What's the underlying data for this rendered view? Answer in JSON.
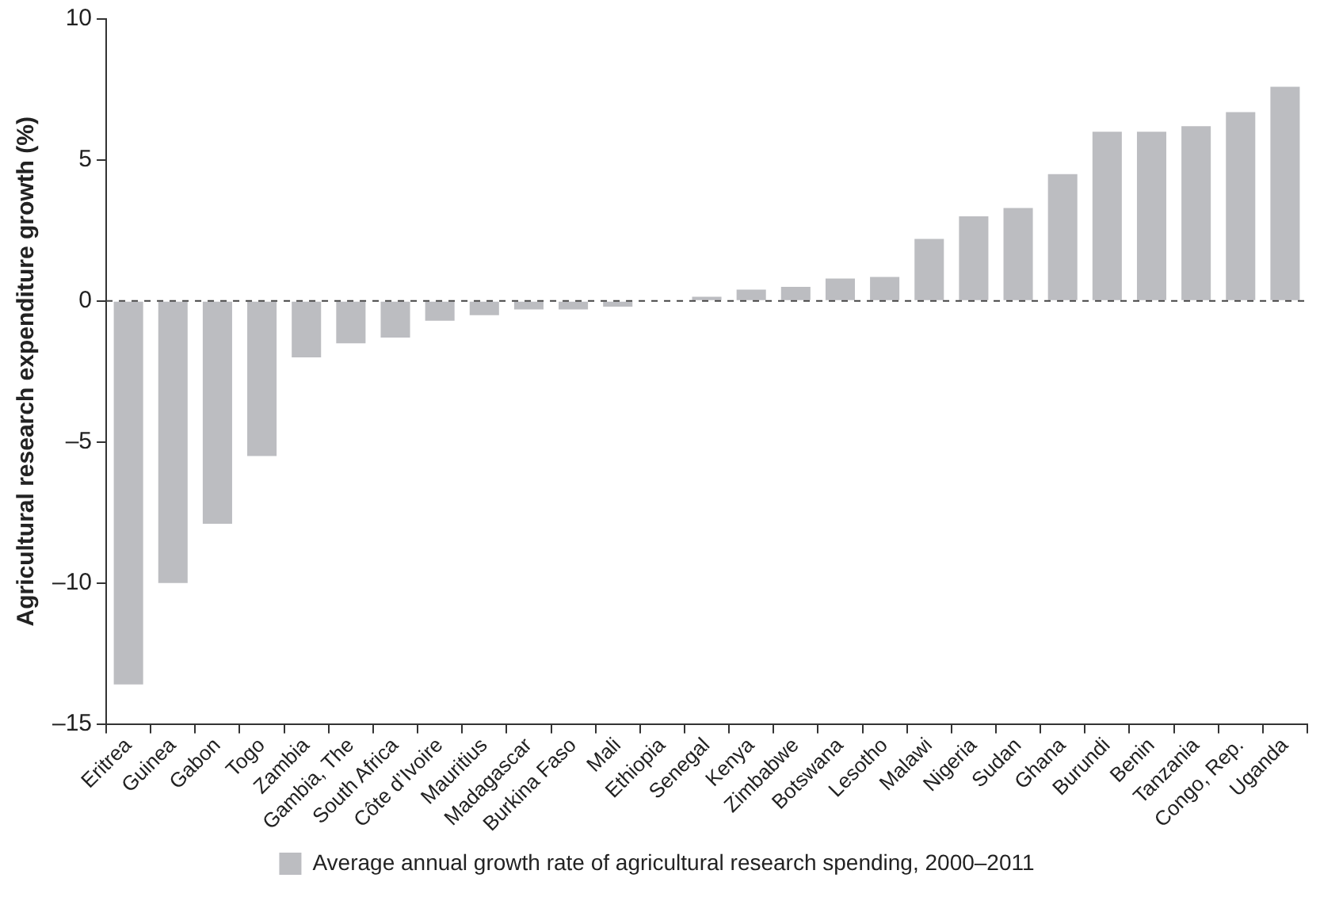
{
  "chart_data": {
    "type": "bar",
    "ylabel": "Agricultural research expenditure growth (%)",
    "categories": [
      "Eritrea",
      "Guinea",
      "Gabon",
      "Togo",
      "Zambia",
      "Gambia, The",
      "South Africa",
      "Côte d’Ivoire",
      "Mauritius",
      "Madagascar",
      "Burkina Faso",
      "Mali",
      "Ethiopia",
      "Senegal",
      "Kenya",
      "Zimbabwe",
      "Botswana",
      "Lesotho",
      "Malawi",
      "Nigeria",
      "Sudan",
      "Ghana",
      "Burundi",
      "Benin",
      "Tanzania",
      "Congo, Rep.",
      "Uganda"
    ],
    "series": [
      {
        "name": "Average annual growth rate of agricultural research spending, 2000–2011",
        "color": "#bcbdc1",
        "values": [
          -13.6,
          -10,
          -7.9,
          -5.5,
          -2,
          -1.5,
          -1.3,
          -0.7,
          -0.5,
          -0.3,
          -0.3,
          -0.2,
          0,
          0.15,
          0.4,
          0.5,
          0.8,
          0.85,
          2.2,
          3,
          3.3,
          4.5,
          6,
          6,
          6.2,
          6.7,
          7.6
        ]
      }
    ],
    "ylim": [
      -15,
      10
    ],
    "yticks": [
      {
        "value": -15,
        "label": "–15"
      },
      {
        "value": -10,
        "label": "–10"
      },
      {
        "value": -5,
        "label": "–5"
      },
      0,
      5,
      10
    ],
    "ref_lines": [
      {
        "axis": "y",
        "value": 0,
        "color": "#444444",
        "line_style": "dashed"
      }
    ],
    "grid": false,
    "legend": "bottom"
  }
}
